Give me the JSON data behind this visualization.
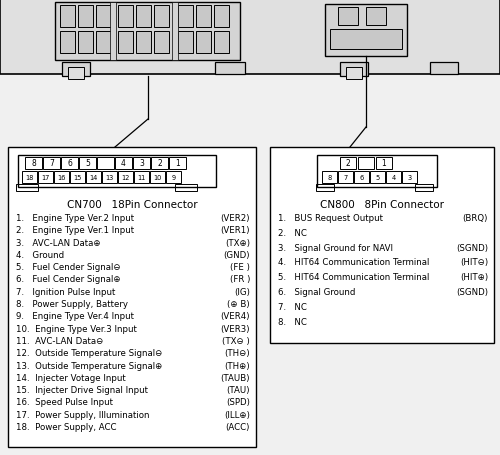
{
  "bg_color": "#f0f0f0",
  "cn700_title": "CN700   18Pin Connector",
  "cn800_title": "CN800   8Pin Connector",
  "cn700_pins": [
    "1.   Engine Type Ver.2 Input",
    "2.   Engine Type Ver.1 Input",
    "3.   AVC-LAN Data⊕",
    "4.   Ground",
    "5.   Fuel Cender Signal⊖",
    "6.   Fuel Cender Signal⊕",
    "7.   Ignition Pulse Input",
    "8.   Power Supply, Battery",
    "9.   Engine Type Ver.4 Input",
    "10.  Engine Type Ver.3 Input",
    "11.  AVC-LAN Data⊖",
    "12.  Outside Temperature Signal⊖",
    "13.  Outside Temperature Signal⊕",
    "14.  Injecter Votage Input",
    "15.  Injecter Drive Signal Input",
    "16.  Speed Pulse Input",
    "17.  Power Supply, Illumination",
    "18.  Power Supply, ACC"
  ],
  "cn700_codes": [
    "(VER2)",
    "(VER1)",
    "(TX⊕)",
    "(GND)",
    "(FE )",
    "(FR )",
    "(IG)",
    "(⊕ B)",
    "(VER4)",
    "(VER3)",
    "(TX⊖ )",
    "(TH⊖)",
    "(TH⊕)",
    "(TAUB)",
    "(TAU)",
    "(SPD)",
    "(ILL⊕)",
    "(ACC)"
  ],
  "cn800_pins": [
    "1.   BUS Request Output",
    "2.   NC",
    "3.   Signal Ground for NAVI",
    "4.   HIT64 Communication Terminal",
    "5.   HIT64 Communication Terminal",
    "6.   Signal Ground",
    "7.   NC",
    "8.   NC"
  ],
  "cn800_codes": [
    "(BRQ)",
    "",
    "(SGND)",
    "(HIT⊖)",
    "(HIT⊕)",
    "(SGND)",
    "",
    ""
  ]
}
